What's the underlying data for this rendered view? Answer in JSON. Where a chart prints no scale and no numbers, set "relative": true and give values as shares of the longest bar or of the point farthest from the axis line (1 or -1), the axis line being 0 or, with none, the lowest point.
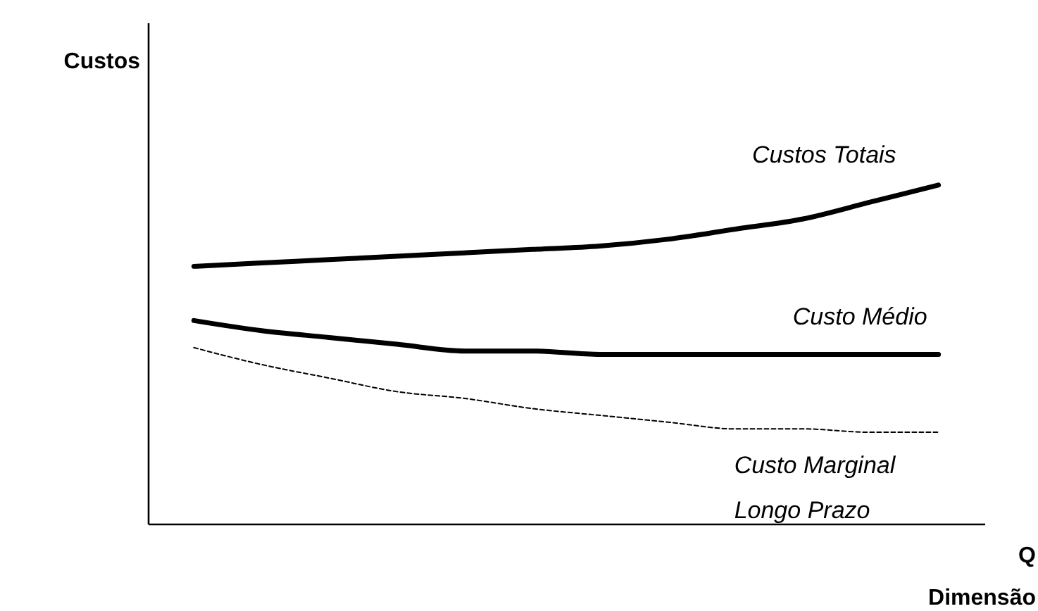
{
  "chart_data": {
    "type": "line",
    "relative": true,
    "ylabel": "Custos",
    "xlabel": "Q\nDimensão",
    "categories": [
      null,
      null,
      null,
      null,
      null,
      null,
      null,
      null,
      null,
      null,
      null,
      null
    ],
    "series": [
      {
        "name": "Custos Totais",
        "color": "#000000",
        "line_style": "solid",
        "values": [
          0.76,
          0.77,
          0.78,
          0.79,
          0.8,
          0.81,
          0.82,
          0.84,
          0.87,
          0.9,
          0.95,
          1.0
        ]
      },
      {
        "name": "Custo Médio",
        "color": "#000000",
        "line_style": "solid",
        "values": [
          0.6,
          0.57,
          0.55,
          0.53,
          0.51,
          0.51,
          0.5,
          0.5,
          0.5,
          0.5,
          0.5,
          0.5
        ]
      },
      {
        "name": "Custo Marginal\nLongo Prazo",
        "color": "#000000",
        "line_style": "dashed",
        "values": [
          0.52,
          0.47,
          0.43,
          0.39,
          0.37,
          0.34,
          0.32,
          0.3,
          0.28,
          0.28,
          0.27,
          0.27
        ]
      }
    ]
  }
}
